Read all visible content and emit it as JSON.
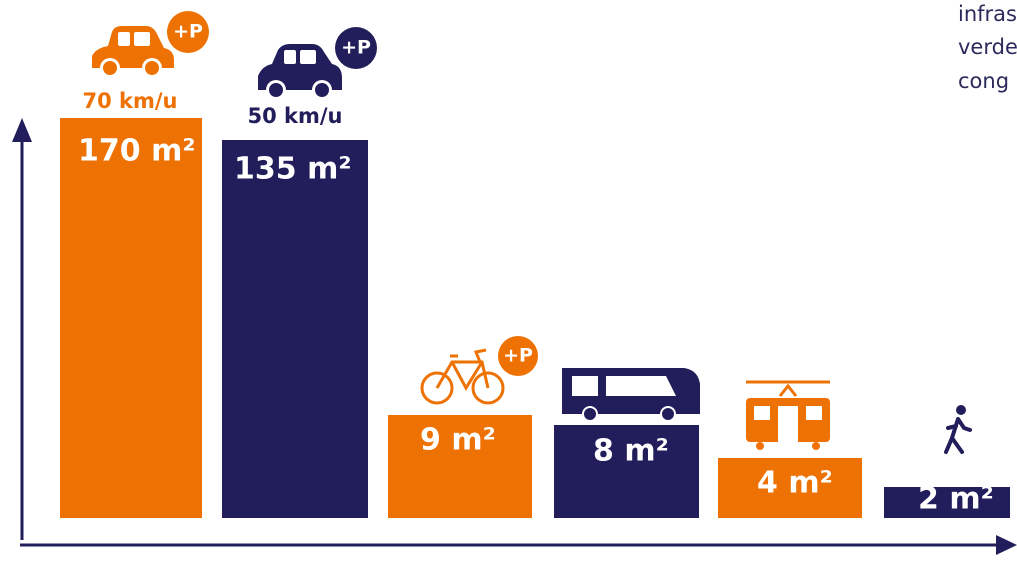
{
  "items": [
    {
      "label": "170 m²",
      "speed": "70 km/u",
      "badge": "+P"
    },
    {
      "label": "135 m²",
      "speed": "50 km/u",
      "badge": "+P"
    },
    {
      "label": "9 m²",
      "badge": "+P"
    },
    {
      "label": "8 m²"
    },
    {
      "label": "4 m²"
    },
    {
      "label": "2 m²"
    }
  ],
  "side_text": [
    "infras",
    "verde",
    "cong"
  ]
}
